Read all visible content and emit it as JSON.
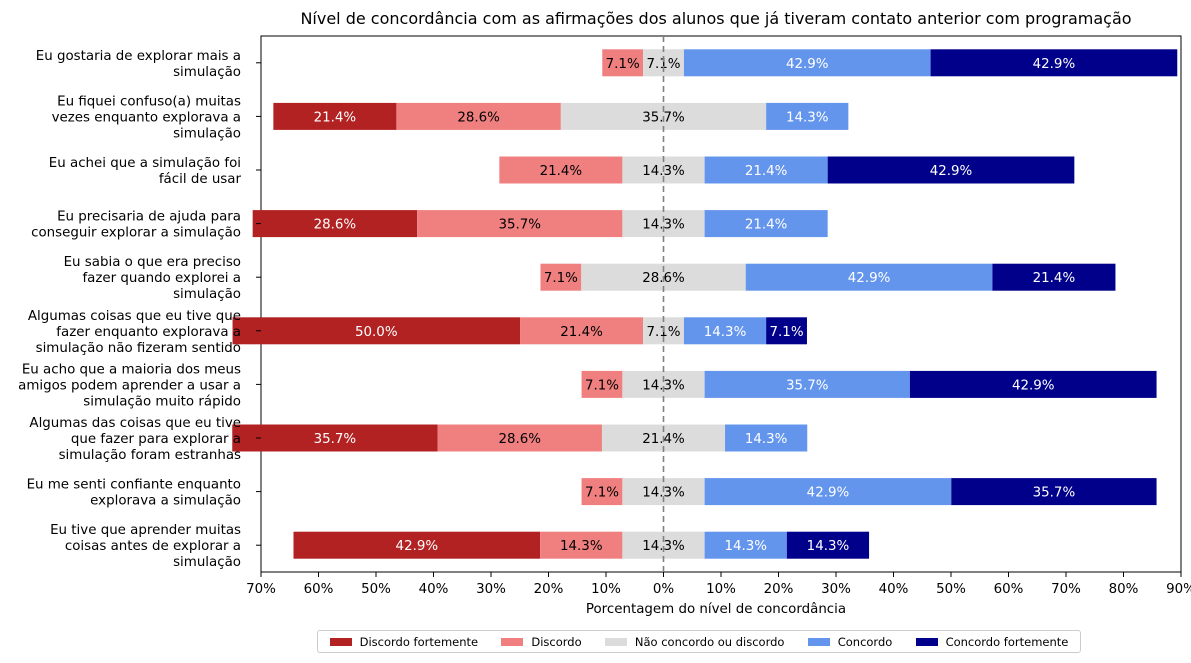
{
  "chart_data": {
    "type": "bar",
    "orientation": "horizontal-diverging",
    "title": "Nível de concordância com as afirmações dos alunos que já tiveram contato anterior com programação",
    "xlabel": "Porcentagem do nível de concordância",
    "xlim": [
      -70,
      90
    ],
    "xticks": [
      -70,
      -60,
      -50,
      -40,
      -30,
      -20,
      -10,
      0,
      10,
      20,
      30,
      40,
      50,
      60,
      70,
      80,
      90
    ],
    "xtick_labels": [
      "70%",
      "60%",
      "50%",
      "40%",
      "30%",
      "20%",
      "10%",
      "0%",
      "10%",
      "20%",
      "30%",
      "40%",
      "50%",
      "60%",
      "70%",
      "80%",
      "90%"
    ],
    "grid": false,
    "legend_position": "bottom-center",
    "categories": [
      "Eu gostaria de explorar mais a\nsimulação",
      "Eu fiquei confuso(a) muitas\nvezes enquanto explorava a\nsimulação",
      "Eu achei que a simulação foi\nfácil de usar",
      "Eu precisaria de ajuda para\nconseguir explorar a simulação",
      "Eu sabia o que era preciso\nfazer quando explorei a\nsimulação",
      "Algumas coisas que eu tive que\nfazer enquanto explorava a\nsimulação não fizeram sentido",
      "Eu acho que a maioria dos meus\namigos podem aprender a usar a\nsimulação muito rápido",
      "Algumas das coisas que eu tive\nque fazer para explorar a\nsimulação foram estranhas",
      "Eu me senti confiante enquanto\nexplorava a simulação",
      "Eu tive que aprender muitas\ncoisas antes de explorar a\nsimulação"
    ],
    "series": [
      {
        "name": "Discordo fortemente",
        "color": "#b22222",
        "text_color": "#ffffff",
        "values": [
          0,
          21.4,
          0,
          28.6,
          0,
          50.0,
          0,
          35.7,
          0,
          42.9
        ]
      },
      {
        "name": "Discordo",
        "color": "#f08080",
        "text_color": "#000000",
        "values": [
          7.1,
          28.6,
          21.4,
          35.7,
          7.1,
          21.4,
          7.1,
          28.6,
          7.1,
          14.3
        ]
      },
      {
        "name": "Não concordo ou discordo",
        "color": "#dcdcdc",
        "text_color": "#000000",
        "values": [
          7.1,
          35.7,
          14.3,
          14.3,
          28.6,
          7.1,
          14.3,
          21.4,
          14.3,
          14.3
        ]
      },
      {
        "name": "Concordo",
        "color": "#6495ed",
        "text_color": "#ffffff",
        "values": [
          42.9,
          14.3,
          21.4,
          21.4,
          42.9,
          14.3,
          35.7,
          14.3,
          42.9,
          14.3
        ]
      },
      {
        "name": "Concordo fortemente",
        "color": "#00008b",
        "text_color": "#ffffff",
        "values": [
          42.9,
          0,
          42.9,
          0,
          21.4,
          7.1,
          42.9,
          0,
          35.7,
          14.3
        ]
      }
    ]
  }
}
